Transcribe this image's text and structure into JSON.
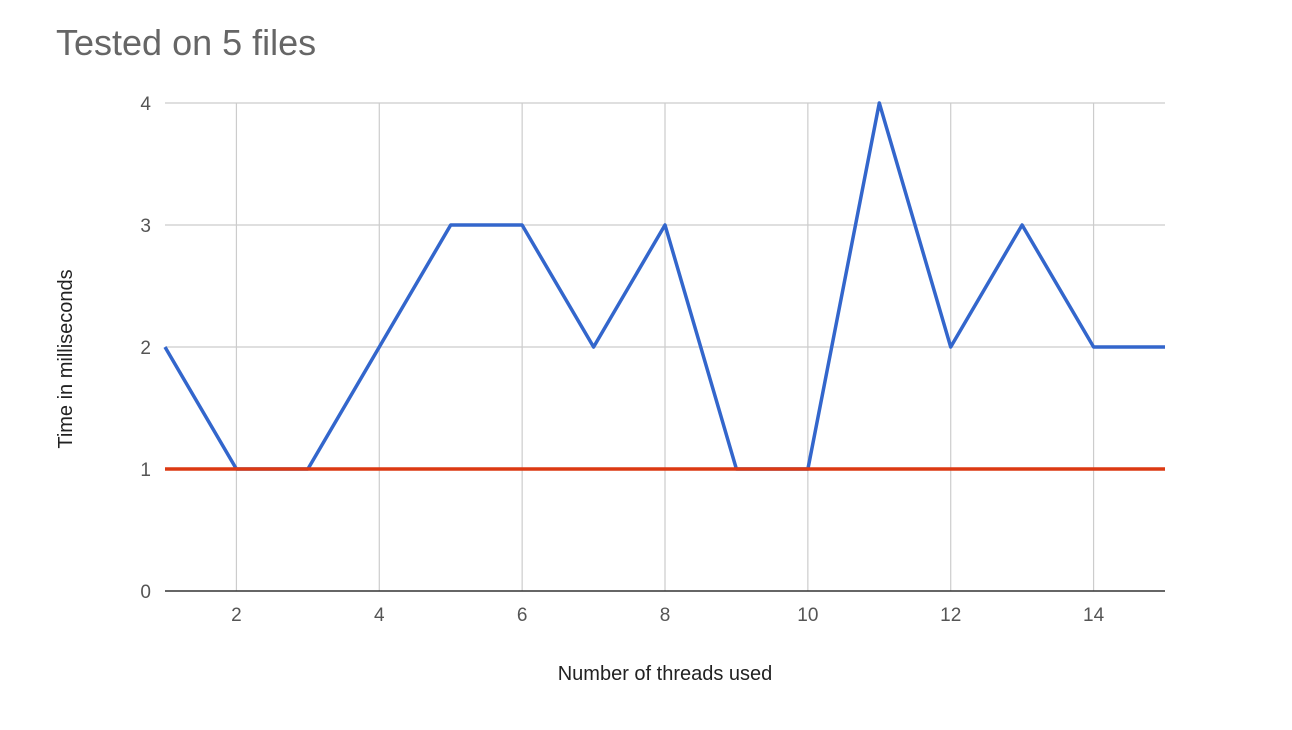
{
  "chart_data": {
    "type": "line",
    "title": "Tested on 5 files",
    "xlabel": "Number of threads used",
    "ylabel": "Time in milliseconds",
    "x": [
      1,
      2,
      3,
      4,
      5,
      6,
      7,
      8,
      9,
      10,
      11,
      12,
      13,
      14,
      15
    ],
    "xlim": [
      1,
      15
    ],
    "ylim": [
      0,
      4
    ],
    "x_ticks": [
      2,
      4,
      6,
      8,
      10,
      12,
      14
    ],
    "y_ticks": [
      0,
      1,
      2,
      3,
      4
    ],
    "grid": true,
    "series": [
      {
        "values": [
          2,
          1,
          1,
          2,
          3,
          3,
          2,
          3,
          1,
          1,
          4,
          2,
          3,
          2,
          2
        ],
        "color": "#3366cc"
      },
      {
        "values": [
          1,
          1,
          1,
          1,
          1,
          1,
          1,
          1,
          1,
          1,
          1,
          1,
          1,
          1,
          1
        ],
        "color": "#dc3912"
      }
    ]
  }
}
